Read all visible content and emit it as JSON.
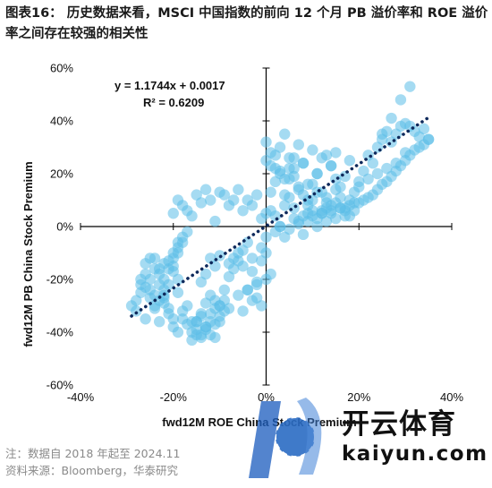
{
  "header": {
    "title": "图表16：  历史数据来看，MSCI 中国指数的前向 12 个月 PB 溢价率和 ROE 溢价率之间存在较强的相关性"
  },
  "chart_data": {
    "type": "scatter",
    "xlabel": "fwd12M ROE China Stock Premium",
    "ylabel": "fwd12M PB China Stock Premium",
    "xlim": [
      -0.4,
      0.4
    ],
    "ylim": [
      -0.6,
      0.6
    ],
    "x_ticks": [
      -0.4,
      -0.2,
      0,
      0.2,
      0.4
    ],
    "y_ticks": [
      -0.6,
      -0.4,
      -0.2,
      0,
      0.2,
      0.4,
      0.6
    ],
    "x_tick_labels": [
      "-40%",
      "-20%",
      "0%",
      "20%",
      "40%"
    ],
    "y_tick_labels": [
      "-60%",
      "-40%",
      "-20%",
      "0%",
      "20%",
      "40%",
      "60%"
    ],
    "annotations": [
      "y = 1.1744x + 0.0017",
      "R² = 0.6209"
    ],
    "grid": false,
    "colors": {
      "points": "#5bbde8",
      "trendline": "#0f2a5c"
    },
    "trendline": {
      "slope": 1.1744,
      "intercept": 0.0017,
      "x_range": [
        -0.29,
        0.35
      ],
      "style": "dotted"
    },
    "series": [
      {
        "x": [
          -0.29,
          -0.28,
          -0.27,
          -0.27,
          -0.26,
          -0.26,
          -0.25,
          -0.25,
          -0.24,
          -0.24,
          -0.23,
          -0.23,
          -0.22,
          -0.22,
          -0.21,
          -0.2,
          -0.2,
          -0.19,
          -0.19,
          -0.18,
          -0.28,
          -0.27,
          -0.26,
          -0.25,
          -0.24,
          -0.23,
          -0.22,
          -0.21,
          -0.2,
          -0.19,
          -0.26,
          -0.25,
          -0.24,
          -0.23,
          -0.22,
          -0.21,
          -0.2,
          -0.19,
          -0.18,
          -0.17,
          -0.24,
          -0.23,
          -0.22,
          -0.21,
          -0.2,
          -0.19,
          -0.18,
          -0.17,
          -0.16,
          -0.15,
          -0.14,
          -0.13,
          -0.12,
          -0.11,
          -0.1,
          -0.22,
          -0.21,
          -0.2,
          -0.19,
          -0.18,
          -0.17,
          -0.16,
          -0.15,
          -0.14,
          -0.13,
          -0.12,
          -0.11,
          -0.1,
          -0.09,
          -0.15,
          -0.14,
          -0.13,
          -0.12,
          -0.11,
          -0.1,
          -0.09,
          -0.08,
          -0.16,
          -0.15,
          -0.14,
          -0.13,
          -0.12,
          -0.11,
          -0.1,
          -0.14,
          -0.13,
          -0.12,
          -0.11,
          -0.1,
          -0.09,
          -0.08,
          -0.07,
          -0.06,
          -0.05,
          -0.04,
          -0.03,
          -0.02,
          -0.01,
          0.0,
          -0.06,
          -0.05,
          -0.04,
          -0.03,
          -0.02,
          -0.01,
          0.0,
          0.01,
          -0.04,
          -0.03,
          -0.02,
          -0.01,
          0.0,
          -0.08,
          -0.07,
          -0.06,
          -0.05,
          -0.2,
          -0.19,
          -0.18,
          -0.17,
          -0.16,
          -0.15,
          -0.14,
          -0.13,
          -0.12,
          -0.11,
          -0.1,
          -0.09,
          -0.08,
          -0.07,
          -0.06,
          -0.05,
          -0.04,
          -0.03,
          -0.02,
          -0.01,
          0.0,
          0.01,
          0.02,
          0.03,
          0.04,
          0.05,
          0.06,
          0.07,
          0.08,
          0.09,
          0.1,
          0.11,
          0.12,
          0.13,
          0.14,
          0.15,
          0.16,
          0.17,
          0.18,
          0.19,
          0.2,
          0.21,
          0.22,
          0.23,
          0.24,
          0.25,
          0.26,
          0.27,
          0.28,
          0.29,
          0.3,
          0.31,
          0.32,
          0.33,
          0.34,
          0.35,
          0.01,
          0.02,
          0.03,
          0.04,
          0.05,
          0.06,
          0.07,
          0.08,
          0.09,
          0.1,
          0.11,
          0.12,
          0.13,
          0.14,
          0.15,
          0.16,
          0.17,
          0.18,
          0.0,
          0.01,
          0.02,
          0.03,
          0.04,
          0.05,
          0.06,
          0.07,
          0.08,
          0.09,
          0.1,
          0.11,
          0.12,
          0.13,
          0.14,
          0.15,
          0.16,
          0.17,
          0.18,
          0.19,
          0.0,
          0.01,
          0.02,
          0.03,
          0.04,
          0.05,
          0.06,
          0.07,
          0.08,
          0.09,
          0.1,
          0.11,
          0.12,
          0.13,
          0.14,
          0.15,
          0.02,
          0.03,
          0.04,
          0.05,
          0.06,
          0.07,
          0.08,
          0.09,
          0.1,
          0.11,
          0.12,
          0.13,
          0.14,
          0.15,
          0.16,
          0.17,
          0.18,
          0.19,
          0.2,
          0.21,
          0.22,
          0.23,
          0.24,
          0.25,
          0.26,
          0.27,
          0.28,
          0.29,
          0.3,
          0.31,
          0.32,
          0.33,
          0.34,
          0.35,
          0.2,
          0.22,
          0.24,
          0.26,
          0.28,
          0.3,
          0.25,
          0.27,
          0.29,
          0.31
        ],
        "y": [
          -0.3,
          -0.28,
          -0.25,
          -0.2,
          -0.14,
          -0.23,
          -0.12,
          -0.2,
          -0.16,
          -0.26,
          -0.18,
          -0.22,
          -0.14,
          -0.24,
          -0.13,
          -0.1,
          -0.17,
          -0.06,
          -0.2,
          -0.04,
          -0.32,
          -0.22,
          -0.18,
          -0.27,
          -0.12,
          -0.28,
          -0.2,
          -0.16,
          -0.12,
          -0.08,
          -0.35,
          -0.24,
          -0.3,
          -0.16,
          -0.26,
          -0.22,
          -0.15,
          -0.1,
          -0.06,
          -0.02,
          -0.31,
          -0.36,
          -0.29,
          -0.33,
          -0.38,
          -0.25,
          -0.35,
          -0.3,
          -0.4,
          -0.36,
          -0.42,
          -0.38,
          -0.33,
          -0.28,
          -0.3,
          -0.27,
          -0.31,
          -0.35,
          -0.4,
          -0.32,
          -0.37,
          -0.36,
          -0.41,
          -0.34,
          -0.39,
          -0.26,
          -0.31,
          -0.36,
          -0.28,
          -0.36,
          -0.33,
          -0.29,
          -0.41,
          -0.37,
          -0.34,
          -0.32,
          -0.31,
          -0.43,
          -0.39,
          -0.41,
          -0.38,
          -0.36,
          -0.42,
          -0.3,
          -0.21,
          -0.18,
          -0.12,
          -0.15,
          -0.11,
          -0.24,
          -0.19,
          -0.16,
          -0.13,
          -0.09,
          -0.06,
          -0.12,
          -0.22,
          -0.08,
          -0.04,
          -0.26,
          -0.32,
          -0.24,
          -0.28,
          -0.27,
          -0.3,
          -0.2,
          -0.18,
          -0.24,
          -0.17,
          -0.21,
          -0.13,
          -0.1,
          -0.14,
          -0.12,
          -0.1,
          -0.15,
          0.05,
          0.1,
          0.08,
          0.06,
          0.04,
          0.12,
          0.09,
          0.14,
          0.1,
          0.02,
          0.13,
          0.12,
          0.08,
          0.1,
          0.14,
          0.06,
          0.1,
          0.08,
          0.12,
          0.03,
          0.05,
          0.06,
          0.04,
          0.0,
          0.08,
          0.11,
          0.07,
          0.02,
          0.04,
          0.05,
          0.06,
          0.03,
          0.05,
          0.07,
          0.08,
          0.09,
          0.07,
          0.06,
          0.1,
          0.13,
          0.17,
          0.21,
          0.27,
          0.24,
          0.3,
          0.33,
          0.36,
          0.32,
          0.35,
          0.38,
          0.39,
          0.38,
          0.36,
          0.34,
          0.37,
          0.33,
          0.13,
          0.17,
          0.21,
          0.12,
          0.18,
          0.22,
          0.14,
          0.24,
          0.1,
          0.16,
          0.2,
          0.26,
          0.11,
          0.23,
          0.28,
          0.15,
          0.19,
          0.25,
          0.25,
          0.23,
          0.27,
          0.2,
          0.18,
          0.22,
          0.26,
          0.15,
          0.12,
          0.08,
          0.1,
          0.13,
          0.06,
          0.09,
          0.05,
          0.14,
          0.11,
          0.07,
          0.04,
          0.09,
          0.32,
          0.28,
          0.22,
          0.3,
          0.35,
          0.26,
          0.19,
          0.31,
          0.24,
          0.16,
          0.29,
          0.2,
          0.13,
          0.27,
          0.23,
          0.18,
          -0.02,
          0.0,
          -0.04,
          -0.01,
          0.03,
          0.01,
          -0.03,
          0.02,
          0.04,
          0.0,
          0.05,
          0.02,
          0.06,
          0.03,
          0.07,
          0.04,
          0.08,
          0.06,
          0.09,
          0.1,
          0.11,
          0.12,
          0.14,
          0.16,
          0.17,
          0.19,
          0.21,
          0.23,
          0.25,
          0.27,
          0.29,
          0.3,
          0.31,
          0.33,
          0.15,
          0.18,
          0.2,
          0.22,
          0.24,
          0.28,
          0.35,
          0.41,
          0.48,
          0.53
        ]
      }
    ]
  },
  "footer": {
    "note": "注：数据自 2018 年起至 2024.11",
    "source": "资料来源：Bloomberg，华泰研究"
  },
  "watermark": {
    "brand": "开云体育",
    "url": "kaiyun.com"
  }
}
